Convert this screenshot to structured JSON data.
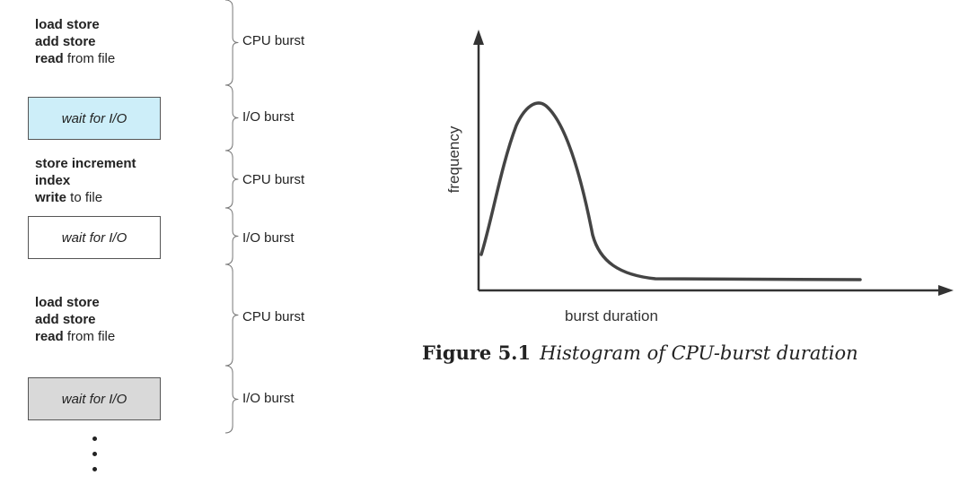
{
  "left_diagram": {
    "blocks": [
      {
        "type": "code",
        "lines": [
          [
            {
              "text": "load store",
              "bold": true
            }
          ],
          [
            {
              "text": "add store",
              "bold": true
            }
          ],
          [
            {
              "text": "read",
              "bold": true
            },
            {
              "text": " from file",
              "bold": false
            }
          ]
        ]
      },
      {
        "type": "io",
        "label": "wait for I/O",
        "fill": "#cdeef9"
      },
      {
        "type": "code",
        "lines": [
          [
            {
              "text": "store increment",
              "bold": true
            }
          ],
          [
            {
              "text": "index",
              "bold": true
            }
          ],
          [
            {
              "text": "write",
              "bold": true
            },
            {
              "text": " to file",
              "bold": false
            }
          ]
        ]
      },
      {
        "type": "io",
        "label": "wait for I/O",
        "fill": "#ffffff"
      },
      {
        "type": "code",
        "lines": [
          [
            {
              "text": "load store",
              "bold": true
            }
          ],
          [
            {
              "text": "add store",
              "bold": true
            }
          ],
          [
            {
              "text": "read",
              "bold": true
            },
            {
              "text": " from file",
              "bold": false
            }
          ]
        ]
      },
      {
        "type": "io",
        "label": "wait for I/O",
        "fill": "#d9d9d9"
      }
    ],
    "burst_labels": [
      "CPU burst",
      "I/O burst",
      "CPU burst",
      "I/O burst",
      "CPU burst",
      "I/O burst"
    ]
  },
  "histogram": {
    "xlabel": "burst duration",
    "ylabel": "frequency",
    "caption_number": "Figure 5.1",
    "caption_title": "Histogram of CPU-burst duration"
  }
}
